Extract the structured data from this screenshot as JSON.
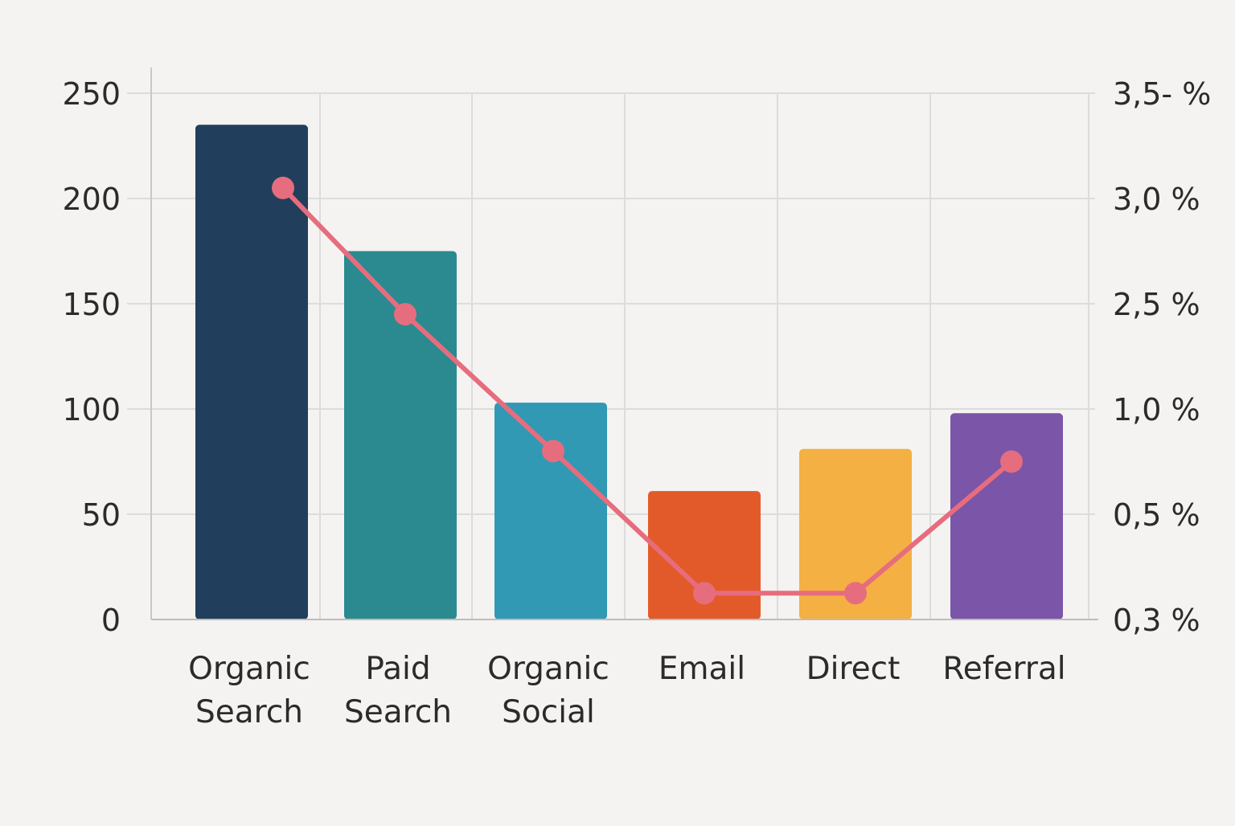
{
  "chart_data": {
    "type": "bar",
    "categories": [
      [
        "Organic",
        "Search"
      ],
      [
        "Paid",
        "Search"
      ],
      [
        "Organic",
        "Social"
      ],
      [
        "Email"
      ],
      [
        "Direct"
      ],
      [
        "Referral"
      ]
    ],
    "series": [
      {
        "kind": "bar",
        "axis": "left",
        "values": [
          235,
          175,
          103,
          61,
          81,
          98
        ],
        "colors": [
          "#213f5c",
          "#2a8a8f",
          "#3199b3",
          "#e35a2a",
          "#f4b042",
          "#7a55a8"
        ]
      },
      {
        "kind": "line",
        "axis": "right",
        "values": [
          "3,05 %",
          "2,35 %",
          "0,8 %",
          "0,35 %",
          "0,35 %",
          "0,75 %"
        ],
        "color": "#e66d7e"
      }
    ],
    "y_left": {
      "ticks": [
        "0",
        "50",
        "100",
        "150",
        "200",
        "250"
      ],
      "ylim": [
        0,
        250
      ]
    },
    "y_right": {
      "ticks": [
        "0,3 %",
        "0,5 %",
        "1,0 %",
        "2,5 %",
        "3,0 %",
        "3,5- %"
      ]
    },
    "title": "",
    "xlabel": "",
    "ylabel": "",
    "grid": true,
    "legend": "none"
  }
}
